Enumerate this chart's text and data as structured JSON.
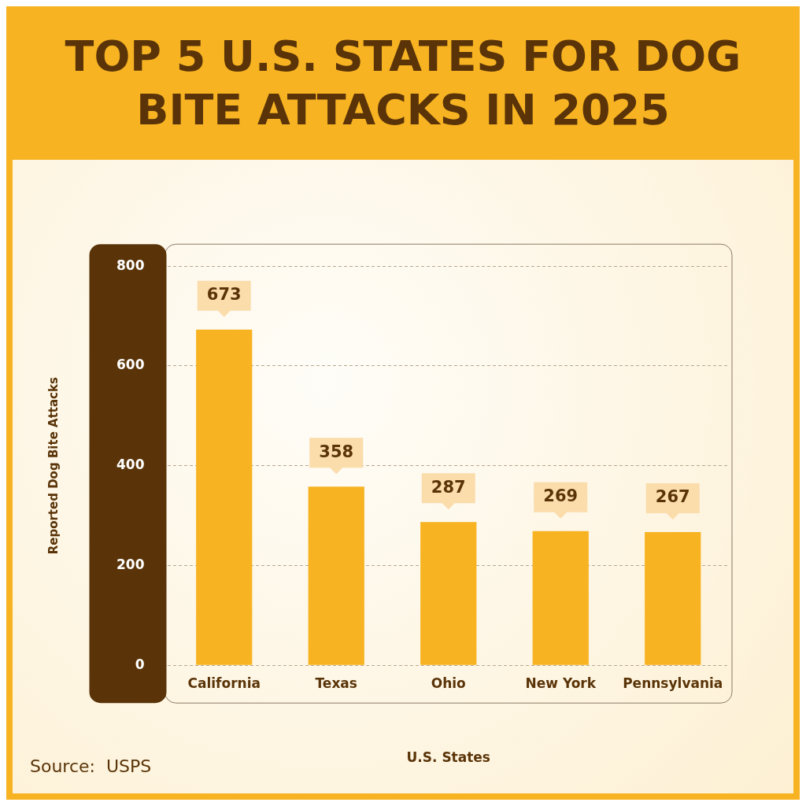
{
  "chart_data": {
    "type": "bar",
    "title": "TOP 5 U.S. STATES FOR DOG BITE ATTACKS IN 2025",
    "xlabel": "U.S. States",
    "ylabel": "Reported Dog Bite Attacks",
    "categories": [
      "California",
      "Texas",
      "Ohio",
      "New York",
      "Pennsylvania"
    ],
    "values": [
      673,
      358,
      287,
      269,
      267
    ],
    "color": "#f7b322",
    "ylim": [
      0,
      800
    ],
    "yticks": [
      0,
      200,
      400,
      600,
      800
    ],
    "grid": "y",
    "data_labels": true,
    "legend": false,
    "annotations": [
      "Source:  USPS"
    ]
  }
}
